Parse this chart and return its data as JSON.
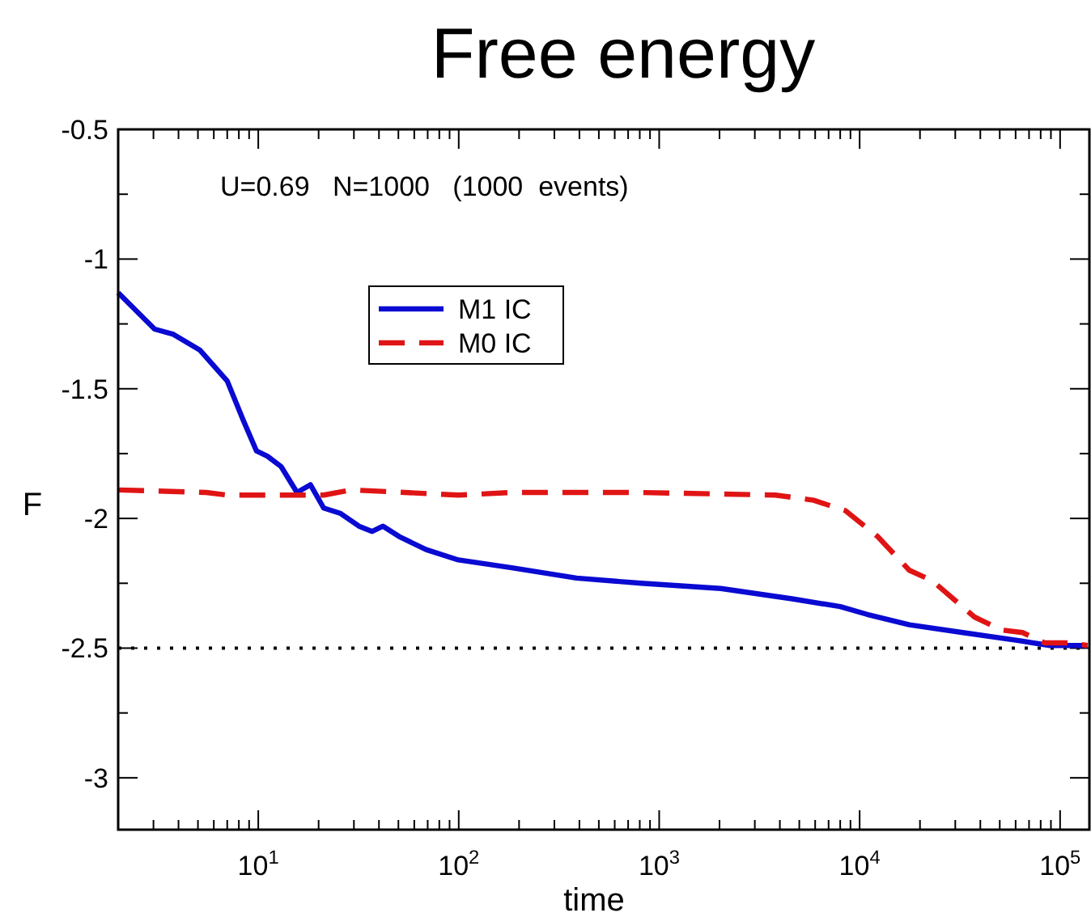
{
  "chart_data": {
    "type": "line",
    "title": "Free energy",
    "xlabel": "time",
    "ylabel": "F",
    "annotations": [
      "U=0.69   N=1000   (1000  events)"
    ],
    "log": "x",
    "legend": "top left",
    "marker": "none",
    "grid": false,
    "xlim": [
      2,
      140000
    ],
    "ylim": [
      -3.2,
      -0.5
    ],
    "xticks": [
      {
        "value": 3,
        "label": null
      },
      {
        "value": 4,
        "label": null
      },
      {
        "value": 5,
        "label": null
      },
      {
        "value": 6,
        "label": null
      },
      {
        "value": 7,
        "label": null
      },
      {
        "value": 8,
        "label": null
      },
      {
        "value": 9,
        "label": null
      },
      {
        "value": 10,
        "label": "10$^{1}$"
      },
      {
        "value": 20,
        "label": null
      },
      {
        "value": 30,
        "label": null
      },
      {
        "value": 40,
        "label": null
      },
      {
        "value": 50,
        "label": null
      },
      {
        "value": 60,
        "label": null
      },
      {
        "value": 70,
        "label": null
      },
      {
        "value": 80,
        "label": null
      },
      {
        "value": 90,
        "label": null
      },
      {
        "value": 100,
        "label": "10$^{2}$"
      },
      {
        "value": 200,
        "label": null
      },
      {
        "value": 300,
        "label": null
      },
      {
        "value": 400,
        "label": null
      },
      {
        "value": 500,
        "label": null
      },
      {
        "value": 600,
        "label": null
      },
      {
        "value": 700,
        "label": null
      },
      {
        "value": 800,
        "label": null
      },
      {
        "value": 900,
        "label": null
      },
      {
        "value": 1000,
        "label": "10$^{3}$"
      },
      {
        "value": 2000,
        "label": null
      },
      {
        "value": 3000,
        "label": null
      },
      {
        "value": 4000,
        "label": null
      },
      {
        "value": 5000,
        "label": null
      },
      {
        "value": 6000,
        "label": null
      },
      {
        "value": 7000,
        "label": null
      },
      {
        "value": 8000,
        "label": null
      },
      {
        "value": 9000,
        "label": null
      },
      {
        "value": 10000,
        "label": "10$^{4}$"
      },
      {
        "value": 20000,
        "label": null
      },
      {
        "value": 30000,
        "label": null
      },
      {
        "value": 40000,
        "label": null
      },
      {
        "value": 50000,
        "label": null
      },
      {
        "value": 60000,
        "label": null
      },
      {
        "value": 70000,
        "label": null
      },
      {
        "value": 80000,
        "label": null
      },
      {
        "value": 90000,
        "label": null
      },
      {
        "value": 100000,
        "label": "10$^{5}$"
      }
    ],
    "yticks": [
      -0.5,
      {
        "value": -0.75,
        "label": null
      },
      -1,
      {
        "value": -1.25,
        "label": null
      },
      -1.5,
      {
        "value": -1.75,
        "label": null
      },
      -2,
      {
        "value": -2.25,
        "label": null
      },
      -2.5,
      {
        "value": -2.75,
        "label": null
      },
      -3
    ],
    "ref_lines": [
      {
        "axis": "y",
        "value": -2.5,
        "color": "#000000",
        "line_style": "dotted"
      }
    ],
    "series": [
      {
        "name": "M1 IC",
        "color": "#0a0ad2",
        "line_style": "solid",
        "x": [
          2,
          3.04,
          3.77,
          5.1,
          7.0,
          8.4,
          9.8,
          11.1,
          13.0,
          15.6,
          18.2,
          21.2,
          25.6,
          31.8,
          37,
          41.9,
          50.5,
          68.7,
          99.6,
          184,
          387,
          814,
          2030,
          4600,
          8000,
          10900,
          17700,
          32700,
          61000,
          89000,
          137000
        ],
        "values": [
          -1.13,
          -1.27,
          -1.29,
          -1.35,
          -1.47,
          -1.62,
          -1.74,
          -1.76,
          -1.8,
          -1.9,
          -1.87,
          -1.96,
          -1.98,
          -2.03,
          -2.05,
          -2.03,
          -2.07,
          -2.12,
          -2.16,
          -2.19,
          -2.23,
          -2.25,
          -2.27,
          -2.31,
          -2.34,
          -2.37,
          -2.41,
          -2.44,
          -2.47,
          -2.49,
          -2.49
        ]
      },
      {
        "name": "M0 IC",
        "color": "#e01414",
        "line_style": "dashed",
        "x": [
          2,
          5.5,
          7,
          21.2,
          29,
          100,
          184,
          236,
          814,
          3800,
          5900,
          8500,
          12300,
          17700,
          23000,
          37400,
          51000,
          65000,
          84000,
          114000,
          137000
        ],
        "values": [
          -1.89,
          -1.9,
          -1.91,
          -1.91,
          -1.89,
          -1.91,
          -1.9,
          -1.9,
          -1.9,
          -1.91,
          -1.93,
          -1.97,
          -2.07,
          -2.2,
          -2.24,
          -2.38,
          -2.43,
          -2.44,
          -2.48,
          -2.48,
          -2.49
        ]
      }
    ]
  }
}
